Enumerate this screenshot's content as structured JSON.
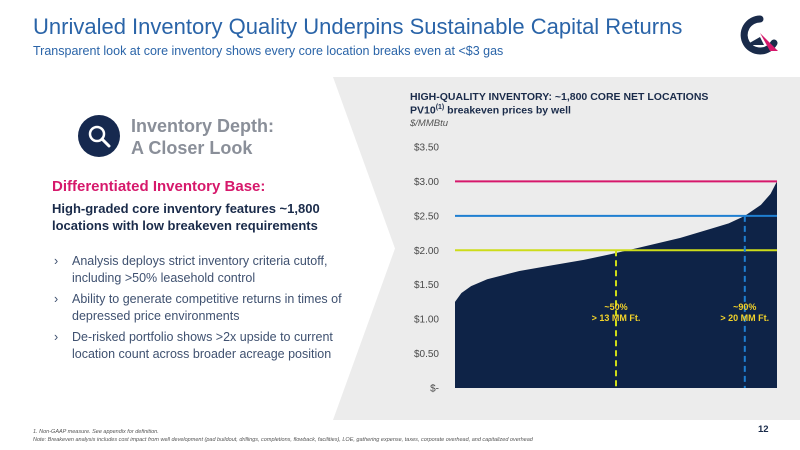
{
  "header": {
    "title": "Unrivaled Inventory Quality Underpins Sustainable Capital Returns",
    "subtitle": "Transparent look at core inventory shows every core location breaks even at <$3 gas"
  },
  "logo_icon": "company-logo-icon",
  "left": {
    "depth_title_line1": "Inventory Depth:",
    "depth_title_line2": "A Closer Look",
    "depth_icon": "magnifier-icon",
    "heading": "Differentiated Inventory Base:",
    "lead": "High-graded core inventory features ~1,800 locations with low breakeven requirements",
    "bullet_marker": "›",
    "bullets": [
      "Analysis deploys strict inventory criteria cutoff, including >50% leasehold control",
      "Ability to generate competitive returns in times of depressed price environments",
      "De-risked portfolio shows >2x upside to current location count across broader acreage position"
    ]
  },
  "chart_data": {
    "type": "area",
    "title": "HIGH-QUALITY INVENTORY: ~1,800 CORE NET LOCATIONS",
    "subtitle_main": "PV10",
    "subtitle_sup": "(1)",
    "subtitle_rest": " breakeven prices by well",
    "unit": "$/MMBtu",
    "xlabel": "",
    "ylabel": "",
    "ylim": [
      0,
      3.5
    ],
    "yticks": [
      "$3.50",
      "$3.00",
      "$2.50",
      "$2.00",
      "$1.50",
      "$1.00",
      "$0.50",
      "$-"
    ],
    "ytick_values": [
      3.5,
      3.0,
      2.5,
      2.0,
      1.5,
      1.0,
      0.5,
      0
    ],
    "grid": false,
    "colors": {
      "area": "#0e2347",
      "line_300": "#d6186b",
      "line_250": "#1f7fd1",
      "line_200": "#cddc1a",
      "annotation": "#f2d22a",
      "vline_50": "#cddc1a",
      "vline_90": "#1f7fd1"
    },
    "x_fraction": [
      0.0,
      0.02,
      0.05,
      0.1,
      0.15,
      0.2,
      0.3,
      0.4,
      0.5,
      0.6,
      0.7,
      0.8,
      0.85,
      0.9,
      0.95,
      0.98,
      1.0
    ],
    "y": [
      1.25,
      1.38,
      1.48,
      1.58,
      1.64,
      1.7,
      1.78,
      1.86,
      1.96,
      2.07,
      2.18,
      2.32,
      2.39,
      2.5,
      2.66,
      2.82,
      3.0
    ],
    "reference_lines": [
      3.0,
      2.5,
      2.0
    ],
    "annotations": [
      {
        "x_fraction": 0.5,
        "line1": "~50%",
        "line2": "> 13 MM Ft."
      },
      {
        "x_fraction": 0.9,
        "line1": "~90%",
        "line2": "> 20 MM Ft."
      }
    ]
  },
  "footnote": {
    "line1": "1.     Non-GAAP measure. See appendix for definition.",
    "line2": "Note: Breakeven analysis includes cost impact from well development (pad buildout, drillings, completions, flowback, facilities), LOE, gathering expense, taxes, corporate overhead, and capitalized overhead"
  },
  "page_number": "12"
}
